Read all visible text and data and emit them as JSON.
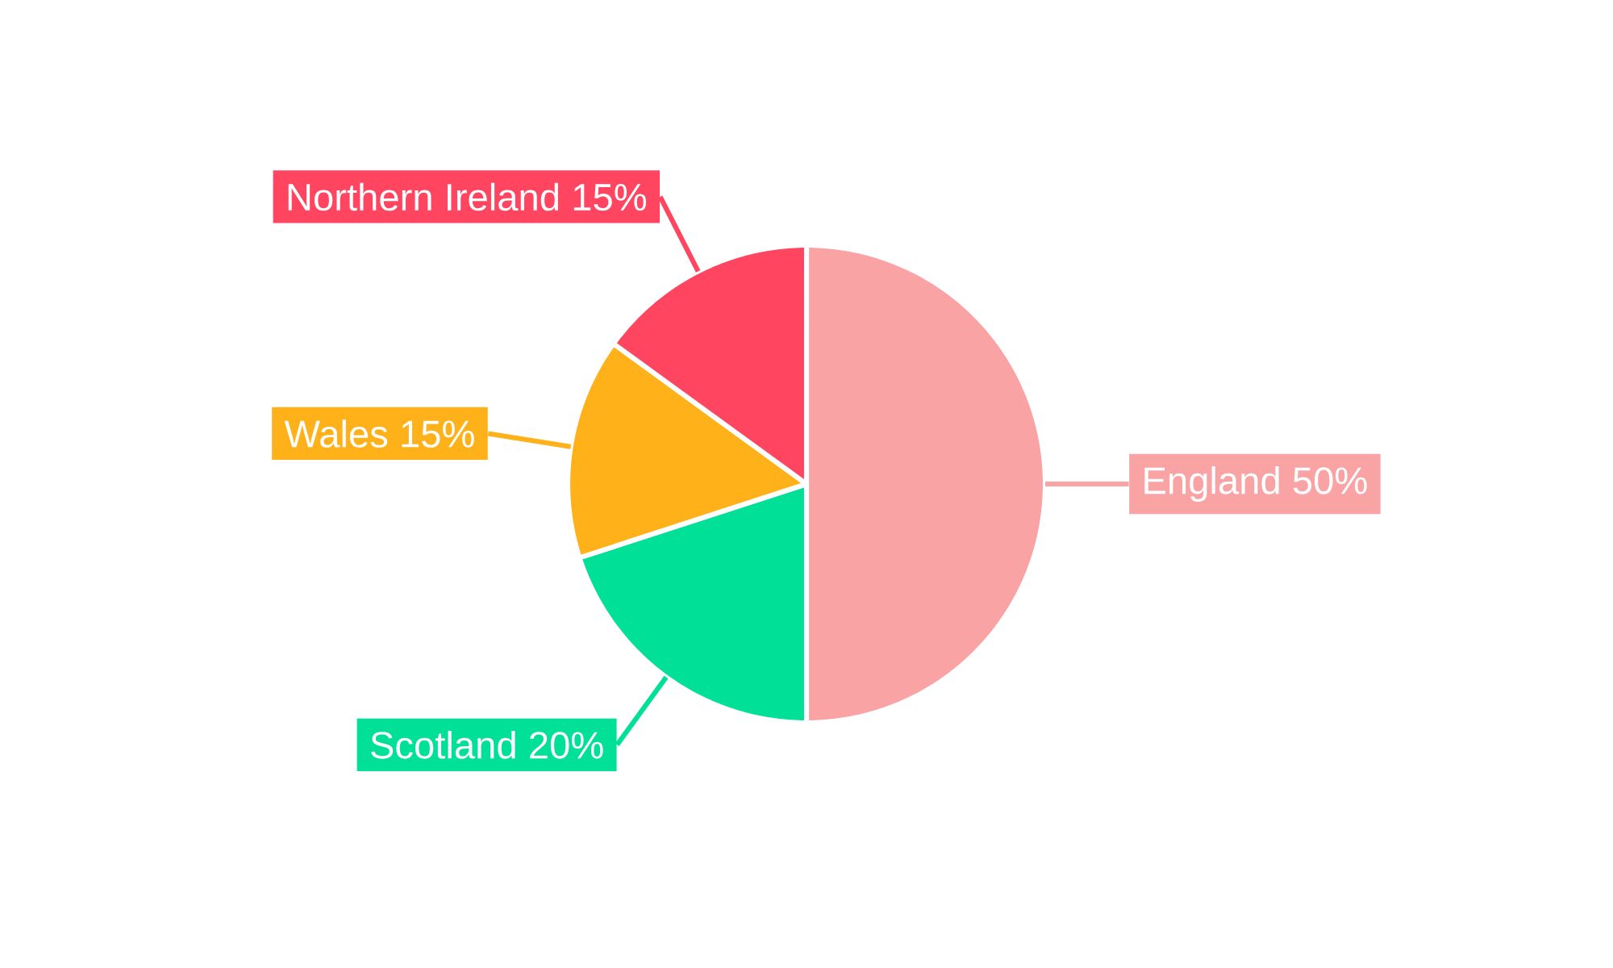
{
  "chart_data": {
    "type": "pie",
    "categories": [
      "England",
      "Scotland",
      "Wales",
      "Northern Ireland"
    ],
    "values": [
      50,
      20,
      15,
      15
    ],
    "value_labels": [
      "50%",
      "20%",
      "15%",
      "15%"
    ],
    "colors": [
      "#f9a3a4",
      "#00e096",
      "#ffb11a",
      "#ff4560"
    ]
  }
}
